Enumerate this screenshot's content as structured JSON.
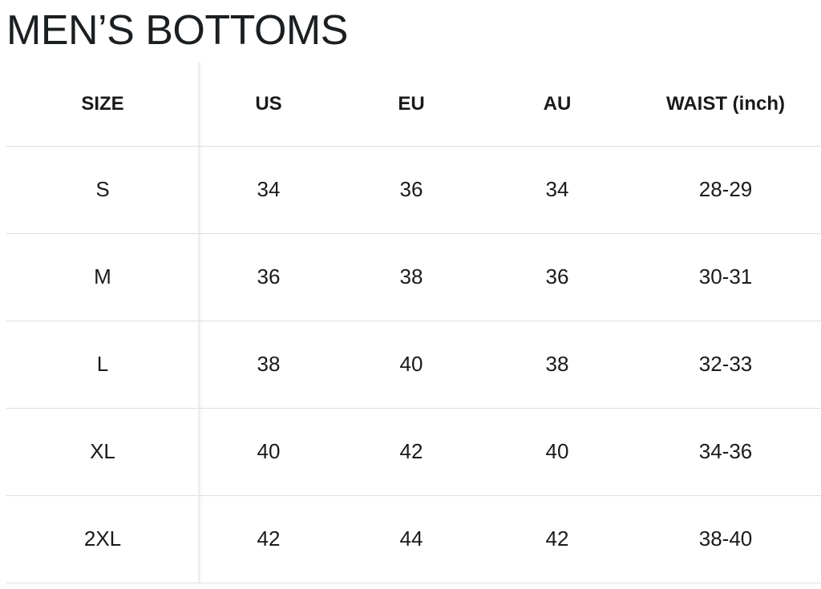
{
  "title": "MEN’S BOTTOMS",
  "table": {
    "header": [
      "SIZE",
      "US",
      "EU",
      "AU",
      "WAIST (inch)"
    ],
    "rows": [
      [
        "S",
        "34",
        "36",
        "34",
        "28-29"
      ],
      [
        "M",
        "36",
        "38",
        "36",
        "30-31"
      ],
      [
        "L",
        "38",
        "40",
        "38",
        "32-33"
      ],
      [
        "XL",
        "40",
        "42",
        "40",
        "34-36"
      ],
      [
        "2XL",
        "42",
        "44",
        "42",
        "38-40"
      ]
    ]
  }
}
